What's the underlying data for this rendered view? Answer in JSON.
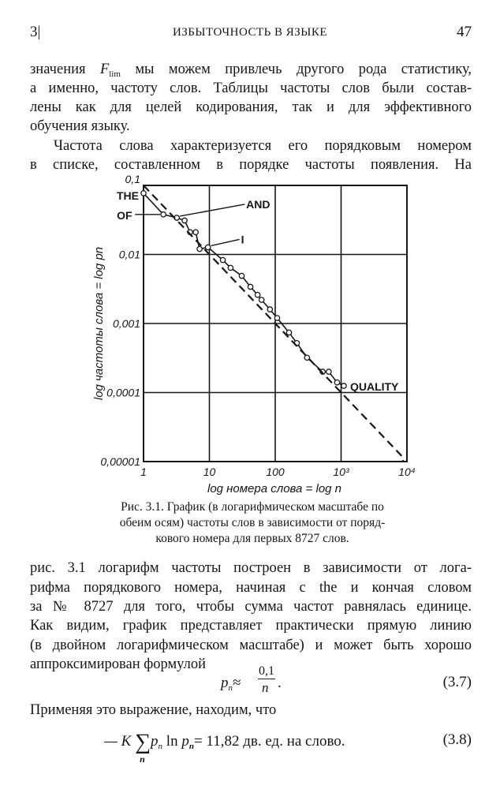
{
  "header": {
    "section": "3|",
    "running_title": "ИЗБЫТОЧНОСТЬ В ЯЗЫКЕ",
    "page_number": "47"
  },
  "para1": {
    "l1_pre": "значения",
    "l1_sym": "F",
    "l1_sub": "lim",
    "l1_post": "мы можем привлечь другого рода статистику,",
    "l2": "а именно, частоту слов. Таблицы частоты слов были состав-",
    "l3": "лены как для целей кодирования, так и для эффективного",
    "l4": "обучения языку."
  },
  "para2": {
    "l1": "Частота слова характеризуется его порядковым номером",
    "l2": "в списке, составленном в порядке частоты появления. На"
  },
  "chart_data": {
    "type": "line",
    "xscale": "log",
    "yscale": "log",
    "xlim": [
      1,
      10000
    ],
    "ylim": [
      1e-05,
      0.1
    ],
    "grid": true,
    "xlabel": "log номера слова = log n",
    "ylabel": "log частоты слова = log pn",
    "xticks": [
      "1",
      "10",
      "100",
      "10³",
      "10⁴"
    ],
    "yticks": [
      "0,1",
      "0,01",
      "0,001",
      "0,0001",
      "0,00001"
    ],
    "series": [
      {
        "style": "solid-with-circles",
        "x": [
          1,
          2,
          3.2,
          4.2,
          5.1,
          6.2,
          7.1,
          9.5,
          16,
          21,
          31,
          42,
          54,
          62,
          83,
          107,
          162,
          213,
          304,
          525,
          650,
          870,
          1100
        ],
        "y": [
          0.077,
          0.038,
          0.034,
          0.031,
          0.021,
          0.021,
          0.012,
          0.0127,
          0.0083,
          0.0064,
          0.0049,
          0.0034,
          0.0026,
          0.0022,
          0.0016,
          0.0012,
          0.00074,
          0.00052,
          0.00032,
          0.0002,
          0.0002,
          0.00014,
          0.000125
        ]
      },
      {
        "style": "dashed",
        "formula": "0,1/n",
        "x": [
          1,
          8727,
          8727
        ],
        "y": [
          0.1,
          1.15e-05,
          1e-05
        ]
      }
    ],
    "annotations": [
      {
        "text": "THE",
        "x": 1,
        "y": 0.077
      },
      {
        "text": "OF",
        "x": 2,
        "y": 0.038
      },
      {
        "text": "AND",
        "x": 3.2,
        "y": 0.034
      },
      {
        "text": "I",
        "x": 9.5,
        "y": 0.0127
      },
      {
        "text": "QUALITY",
        "x": 1100,
        "y": 0.000125
      }
    ]
  },
  "caption": {
    "l1": "Рис. 3.1. График (в логарифмическом масштабе по",
    "l2": "обеим осям) частоты слов в зависимости от поряд-",
    "l3": "кового номера для первых 8727 слов."
  },
  "para3": {
    "l1": "рис. 3.1 логарифм частоты построен в зависимости от лога-",
    "l2": "рифма порядкового номера, начиная с the и кончая словом",
    "l3": "за № 8727 для того, чтобы сумма частот равнялась единице.",
    "l4": "Как видим, график представляет практически прямую линию",
    "l5": "(в двойном логарифмическом масштабе) и может быть хорошо",
    "l6": "аппроксимирован формулой"
  },
  "eq37": {
    "lhs": "p",
    "lhs_sub": "n",
    "approx": "≈",
    "num": "0,1",
    "den": "n",
    "dot": ".",
    "label": "(3.7)"
  },
  "para4": {
    "l1": "Применяя это выражение, находим, что"
  },
  "eq38": {
    "minus_k": "— K",
    "sigma": "∑",
    "sigma_sub": "n",
    "p1": "p",
    "p1_sub": "n",
    "ln": "ln",
    "p2": "p",
    "p2_sub": "n",
    "rhs": "= 11,82 дв. ед. на слово.",
    "label": "(3.8)"
  }
}
